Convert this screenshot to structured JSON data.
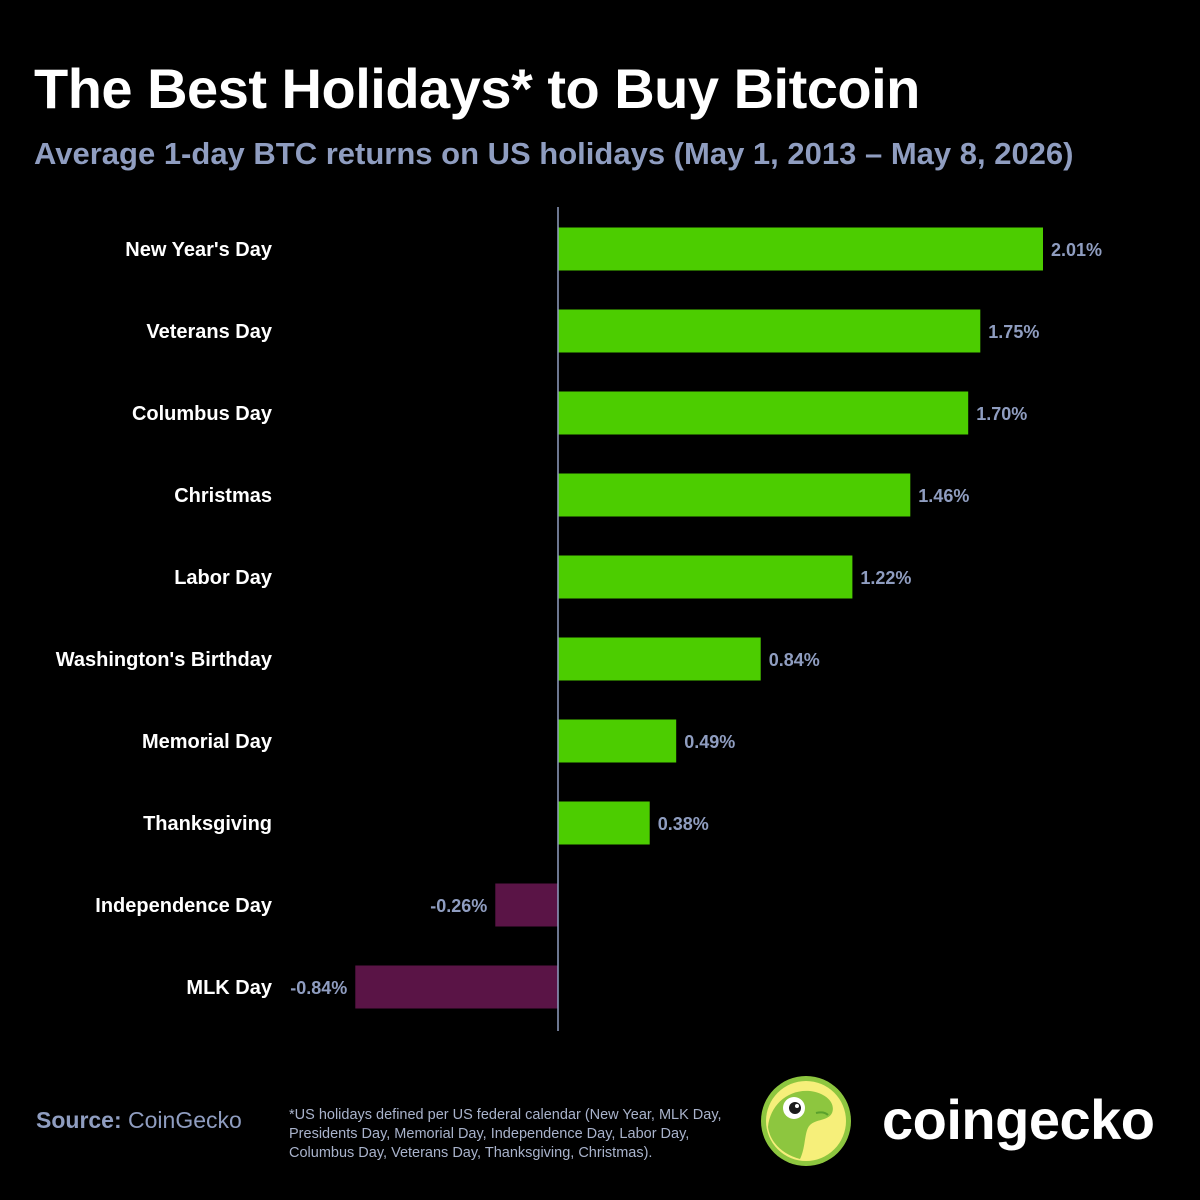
{
  "header": {
    "title": "The Best Holidays* to Buy Bitcoin",
    "subtitle": "Average 1-day BTC returns on US holidays (May 1, 2013 – May 8, 2026)"
  },
  "colors": {
    "positive": "#4ccd00",
    "negative": "#5a1446",
    "label": "#ffffff",
    "value_label": "#8f9dc0",
    "axis": "#8f9dc0",
    "background": "#000000"
  },
  "chart_data": {
    "type": "bar",
    "orientation": "horizontal",
    "categories": [
      "New Year's Day",
      "Veterans Day",
      "Columbus Day",
      "Christmas",
      "Labor Day",
      "Washington's Birthday",
      "Memorial Day",
      "Thanksgiving",
      "Independence Day",
      "MLK Day"
    ],
    "values": [
      2.01,
      1.75,
      1.7,
      1.46,
      1.22,
      0.84,
      0.49,
      0.38,
      -0.26,
      -0.84
    ],
    "value_labels": [
      "2.01%",
      "1.75%",
      "1.70%",
      "1.46%",
      "1.22%",
      "0.84%",
      "0.49%",
      "0.38%",
      "-0.26%",
      "-0.84%"
    ],
    "unit": "%",
    "xlim": [
      -0.84,
      2.01
    ],
    "grid": false,
    "legend": "none"
  },
  "footer": {
    "source_label": "Source:",
    "source_value": "CoinGecko",
    "footnote": "*US holidays defined per US federal calendar (New Year, MLK Day, Presidents Day, Memorial Day, Independence Day, Labor Day, Columbus Day, Veterans Day, Thanksgiving, Christmas).",
    "brand": "coingecko",
    "brand_logo_icon": "gecko-logo-icon"
  }
}
